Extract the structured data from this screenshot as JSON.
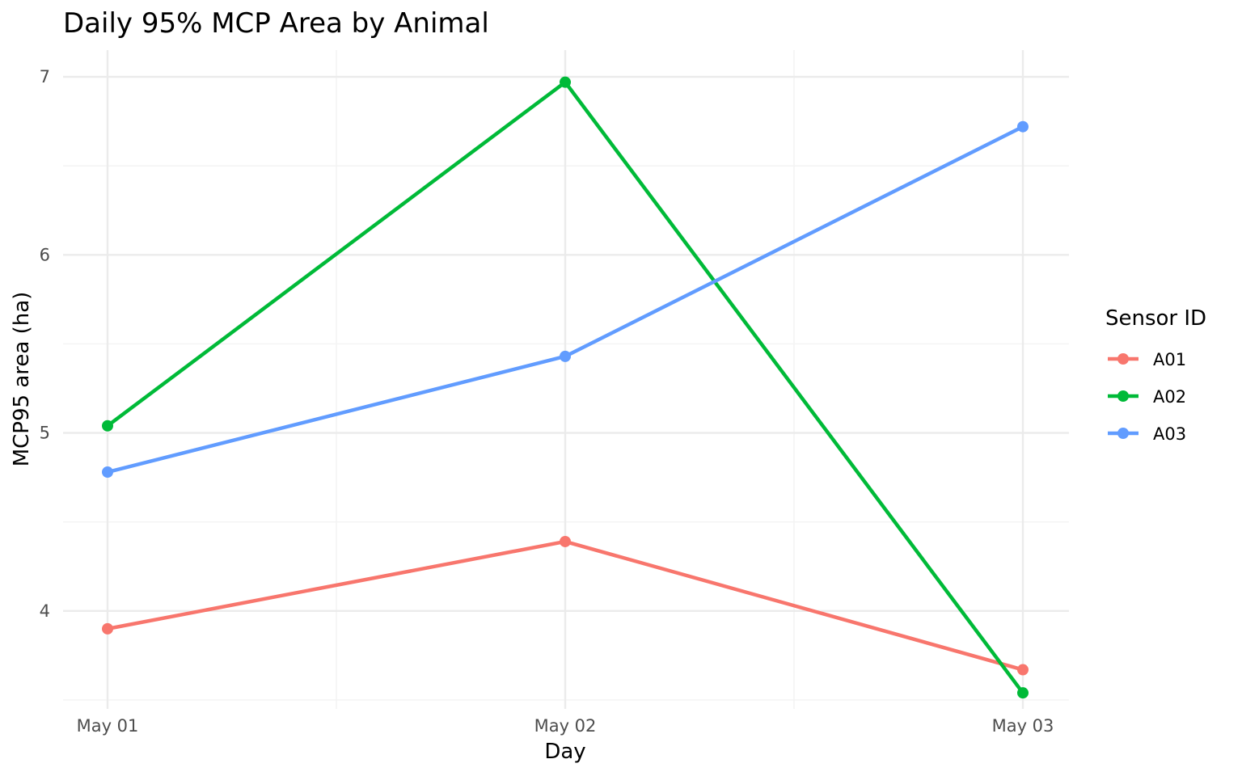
{
  "chart_data": {
    "type": "line",
    "title": "Daily 95% MCP Area by Animal",
    "xlabel": "Day",
    "ylabel": "MCP95 area (ha)",
    "x": [
      "May 01",
      "May 02",
      "May 03"
    ],
    "y_ticks": [
      4,
      5,
      6,
      7
    ],
    "ylim": [
      3.45,
      7.15
    ],
    "grid": true,
    "legend": {
      "title": "Sensor ID",
      "position": "right"
    },
    "series": [
      {
        "name": "A01",
        "color": "#F8766D",
        "values": [
          3.9,
          4.39,
          3.67
        ]
      },
      {
        "name": "A02",
        "color": "#00BA38",
        "values": [
          5.04,
          6.97,
          3.54
        ]
      },
      {
        "name": "A03",
        "color": "#619CFF",
        "values": [
          4.78,
          5.43,
          6.72
        ]
      }
    ]
  }
}
